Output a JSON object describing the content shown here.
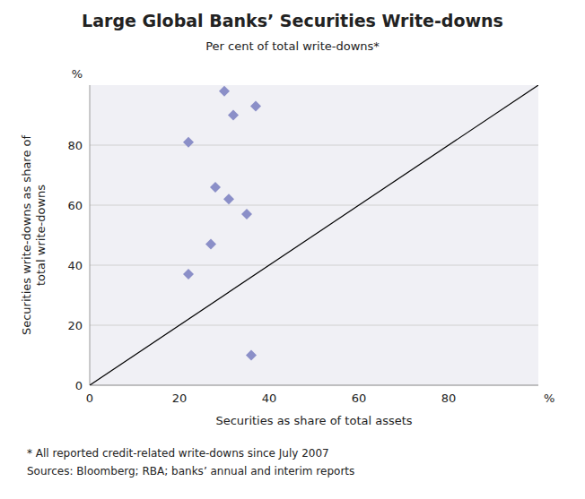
{
  "chart_data": {
    "type": "scatter",
    "title": "Large Global Banks’ Securities Write-downs",
    "subtitle": "Per cent of total write-downs*",
    "x_label": "Securities as share of total assets",
    "y_label": "Securities write-downs as share of\ntotal write-downs",
    "x": [
      30,
      32,
      37,
      22,
      28,
      31,
      35,
      27,
      22,
      36
    ],
    "values": [
      98,
      90,
      93,
      81,
      66,
      62,
      57,
      47,
      37,
      10
    ],
    "color": "#8b8fc8",
    "marker": "diamond",
    "xlim": [
      0,
      100
    ],
    "ylim": [
      0,
      100
    ],
    "xticks": [
      0,
      20,
      40,
      60,
      80
    ],
    "yticks": [
      0,
      20,
      40,
      60,
      80
    ],
    "grid": "y",
    "annotations": [
      {
        "text": "%",
        "axis": "y"
      },
      {
        "text": "%",
        "axis": "x"
      }
    ],
    "footnotes": [
      "*  All reported credit-related write-downs since July 2007",
      "Sources: Bloomberg; RBA; banks’ annual and interim reports"
    ]
  }
}
